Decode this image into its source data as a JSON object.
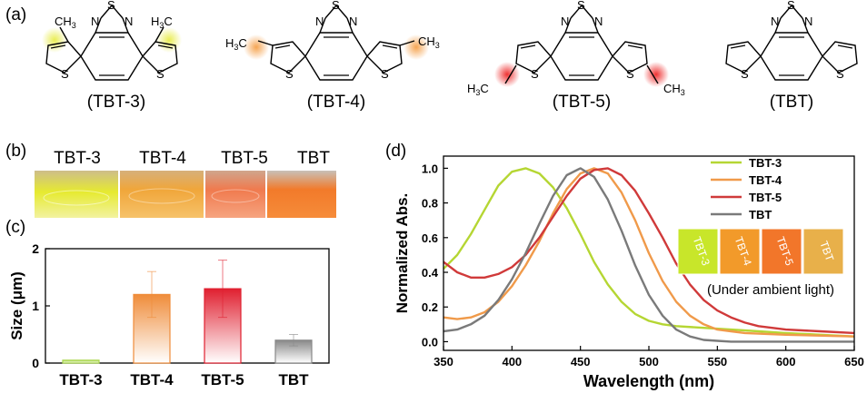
{
  "panel_a": {
    "label": "(a)",
    "molecules": [
      {
        "name": "(TBT-3)",
        "substituents": [
          "CH3",
          "H3C"
        ],
        "highlight": "#e8ec4a"
      },
      {
        "name": "(TBT-4)",
        "substituents": [
          "H3C",
          "CH3"
        ],
        "highlight": "#f5a04a"
      },
      {
        "name": "(TBT-5)",
        "substituents": [
          "H3C",
          "CH3"
        ],
        "highlight": "#ee3333"
      },
      {
        "name": "(TBT)",
        "substituents": [],
        "highlight": ""
      }
    ],
    "atoms": {
      "sulfur": "S",
      "nitrogen": "N"
    }
  },
  "panel_b": {
    "label": "(b)",
    "vials": [
      {
        "name": "TBT-3",
        "color": "#e6e82a"
      },
      {
        "name": "TBT-4",
        "color": "#f2a636"
      },
      {
        "name": "TBT-5",
        "color": "#f2764a"
      },
      {
        "name": "TBT",
        "color": "#f27a2a"
      }
    ]
  },
  "panel_c": {
    "label": "(c)",
    "chart_data": {
      "type": "bar",
      "categories": [
        "TBT-3",
        "TBT-4",
        "TBT-5",
        "TBT"
      ],
      "values": [
        0.05,
        1.2,
        1.3,
        0.4
      ],
      "errors": [
        0,
        0.4,
        0.5,
        0.1
      ],
      "colors": [
        "#a8d64a",
        "#ef8c3a",
        "#e02030",
        "#888888"
      ],
      "ylabel": "Size (μm)",
      "ylim": [
        0,
        2
      ],
      "yticks": [
        "0",
        "1",
        "2"
      ]
    }
  },
  "panel_d": {
    "label": "(d)",
    "inset_caption": "(Under ambient light)",
    "inset_vials": [
      {
        "name": "TBT-3",
        "color": "#c8e62a"
      },
      {
        "name": "TBT-4",
        "color": "#f29a2a"
      },
      {
        "name": "TBT-5",
        "color": "#f2762a"
      },
      {
        "name": "TBT",
        "color": "#e8b04a"
      }
    ],
    "chart_data": {
      "type": "line",
      "xlabel": "Wavelength (nm)",
      "ylabel": "Normalized Abs.",
      "xlim": [
        350,
        650
      ],
      "ylim": [
        -0.05,
        1.07
      ],
      "xticks": [
        "350",
        "400",
        "450",
        "500",
        "550",
        "600",
        "650"
      ],
      "yticks": [
        "0.0",
        "0.2",
        "0.4",
        "0.6",
        "0.8",
        "1.0"
      ],
      "legend_position": "top-right",
      "series": [
        {
          "name": "TBT-3",
          "color": "#b5d633",
          "x": [
            350,
            360,
            370,
            380,
            390,
            400,
            410,
            420,
            430,
            440,
            450,
            460,
            470,
            480,
            490,
            500,
            510,
            520,
            540,
            560,
            580,
            600,
            625,
            650
          ],
          "y": [
            0.42,
            0.5,
            0.62,
            0.76,
            0.9,
            0.98,
            1.0,
            0.97,
            0.89,
            0.77,
            0.62,
            0.46,
            0.33,
            0.23,
            0.16,
            0.12,
            0.1,
            0.09,
            0.08,
            0.07,
            0.06,
            0.05,
            0.04,
            0.03
          ]
        },
        {
          "name": "TBT-4",
          "color": "#f09a4a",
          "x": [
            350,
            360,
            370,
            380,
            390,
            400,
            410,
            420,
            430,
            440,
            450,
            460,
            470,
            480,
            490,
            500,
            510,
            520,
            530,
            540,
            550,
            560,
            570,
            600,
            650
          ],
          "y": [
            0.14,
            0.13,
            0.14,
            0.17,
            0.23,
            0.32,
            0.44,
            0.58,
            0.74,
            0.88,
            0.97,
            1.0,
            0.97,
            0.86,
            0.7,
            0.51,
            0.35,
            0.23,
            0.15,
            0.1,
            0.07,
            0.06,
            0.05,
            0.04,
            0.03
          ]
        },
        {
          "name": "TBT-5",
          "color": "#d03a3a",
          "x": [
            350,
            360,
            370,
            380,
            390,
            400,
            410,
            420,
            430,
            440,
            450,
            460,
            470,
            480,
            490,
            500,
            510,
            520,
            530,
            540,
            550,
            560,
            570,
            580,
            600,
            625,
            650
          ],
          "y": [
            0.46,
            0.4,
            0.37,
            0.37,
            0.39,
            0.43,
            0.5,
            0.6,
            0.72,
            0.84,
            0.94,
            0.99,
            1.0,
            0.96,
            0.87,
            0.74,
            0.6,
            0.45,
            0.33,
            0.24,
            0.18,
            0.14,
            0.11,
            0.09,
            0.07,
            0.06,
            0.05
          ]
        },
        {
          "name": "TBT",
          "color": "#7a7a7a",
          "x": [
            350,
            360,
            370,
            380,
            390,
            400,
            410,
            420,
            430,
            440,
            450,
            460,
            470,
            480,
            490,
            500,
            510,
            520,
            530,
            540,
            550,
            560,
            580,
            600,
            650
          ],
          "y": [
            0.06,
            0.07,
            0.1,
            0.15,
            0.24,
            0.36,
            0.51,
            0.68,
            0.84,
            0.96,
            1.0,
            0.95,
            0.82,
            0.64,
            0.44,
            0.27,
            0.15,
            0.07,
            0.03,
            0.01,
            0.005,
            0.0,
            0.0,
            0.0,
            0.0
          ]
        }
      ]
    }
  }
}
